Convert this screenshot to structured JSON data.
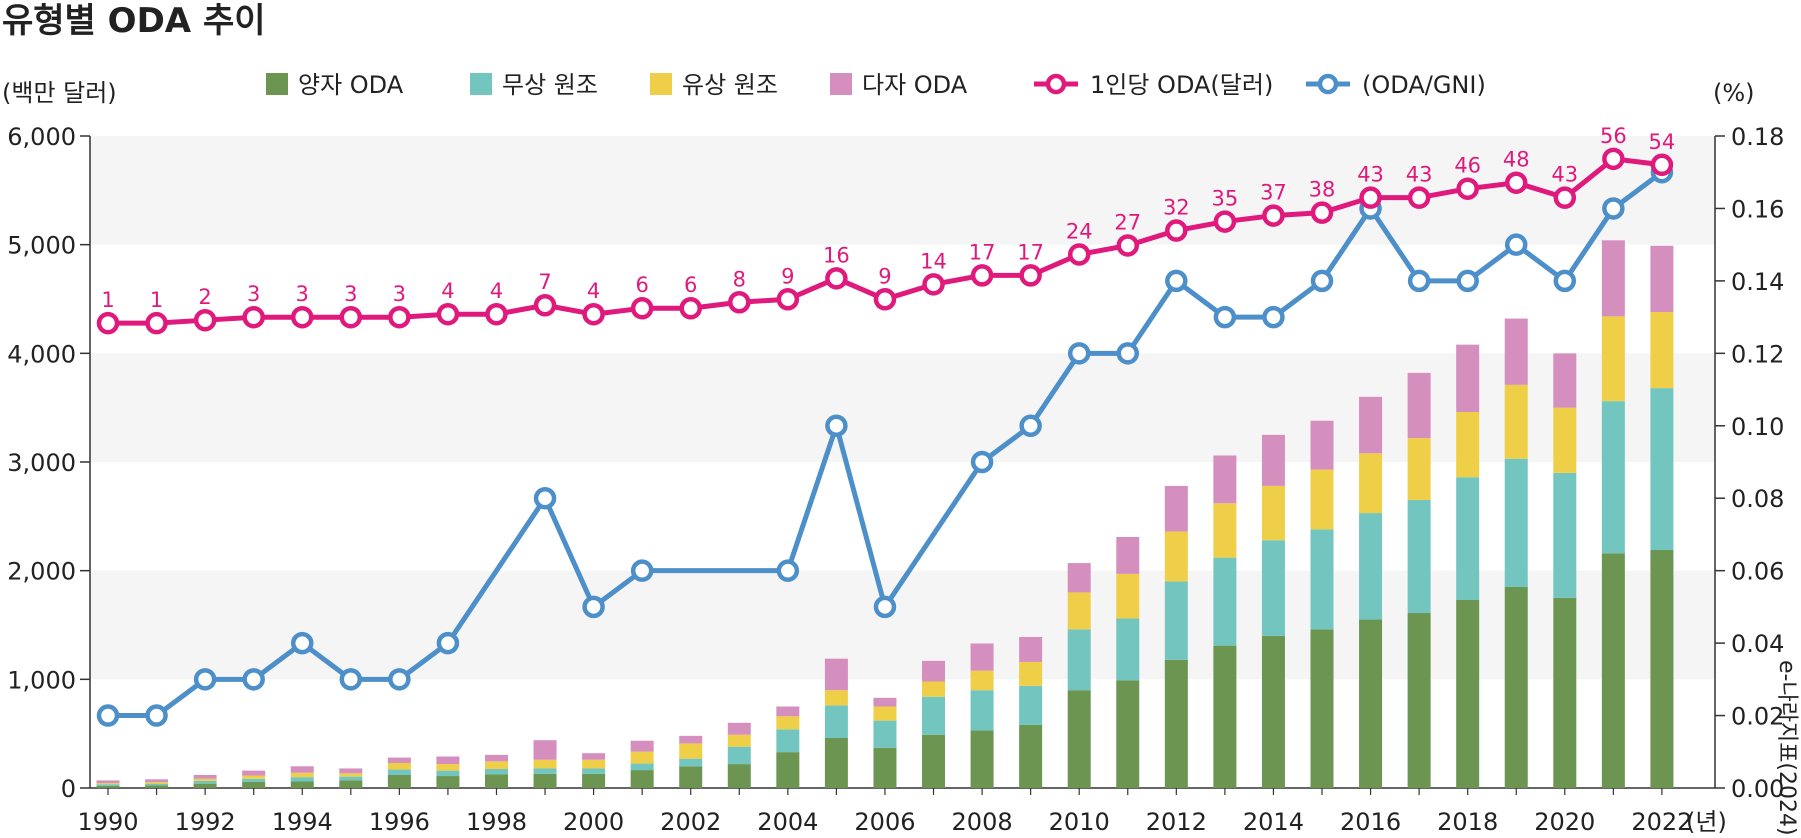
{
  "chart_data": {
    "type": "bar",
    "title": "유형별 ODA 추이",
    "left_axis_unit": "(백만 달러)",
    "right_axis_unit": "(%)",
    "x_unit": "(년)",
    "source": "e-나라지표(2024)",
    "ylim": [
      0,
      6000
    ],
    "y2lim": [
      0,
      0.18
    ],
    "yticks": [
      "0",
      "1,000",
      "2,000",
      "3,000",
      "4,000",
      "5,000",
      "6,000"
    ],
    "y2ticks": [
      "0.00",
      "0.02",
      "0.04",
      "0.06",
      "0.08",
      "0.10",
      "0.12",
      "0.14",
      "0.16",
      "0.18"
    ],
    "xtick_labels": [
      "1990",
      "1992",
      "1994",
      "1996",
      "1998",
      "2000",
      "2002",
      "2004",
      "2006",
      "2008",
      "2010",
      "2012",
      "2014",
      "2016",
      "2018",
      "2020",
      "2022"
    ],
    "grid": "alternating horizontal bands",
    "legend_position": "top",
    "categories": [
      1990,
      1991,
      1992,
      1993,
      1994,
      1995,
      1996,
      1997,
      1998,
      1999,
      2000,
      2001,
      2002,
      2003,
      2004,
      2005,
      2006,
      2007,
      2008,
      2009,
      2010,
      2011,
      2012,
      2013,
      2014,
      2015,
      2016,
      2017,
      2018,
      2019,
      2020,
      2021,
      2022
    ],
    "series": [
      {
        "name": "양자 ODA",
        "kind": "stacked-bar",
        "color": "#6b9551",
        "values": [
          20,
          25,
          40,
          55,
          60,
          70,
          120,
          110,
          125,
          130,
          130,
          165,
          200,
          220,
          330,
          460,
          370,
          490,
          530,
          580,
          900,
          990,
          1180,
          1310,
          1400,
          1460,
          1550,
          1610,
          1730,
          1850,
          1750,
          2160,
          2190
        ]
      },
      {
        "name": "무상 원조",
        "kind": "stacked-bar",
        "color": "#72c6bf",
        "values": [
          15,
          15,
          25,
          30,
          40,
          35,
          50,
          50,
          50,
          50,
          50,
          60,
          70,
          160,
          210,
          300,
          250,
          350,
          370,
          360,
          560,
          570,
          720,
          810,
          880,
          920,
          980,
          1040,
          1130,
          1180,
          1150,
          1400,
          1490
        ]
      },
      {
        "name": "유상 원조",
        "kind": "stacked-bar",
        "color": "#f0cf48",
        "values": [
          10,
          15,
          20,
          30,
          40,
          30,
          60,
          60,
          70,
          80,
          80,
          110,
          140,
          110,
          120,
          140,
          130,
          140,
          180,
          220,
          340,
          410,
          460,
          500,
          500,
          550,
          550,
          570,
          600,
          680,
          600,
          780,
          700
        ]
      },
      {
        "name": "다자 ODA",
        "kind": "stacked-bar",
        "color": "#d58fbf",
        "values": [
          25,
          25,
          35,
          45,
          60,
          45,
          50,
          70,
          60,
          180,
          60,
          100,
          70,
          110,
          90,
          290,
          80,
          190,
          250,
          230,
          270,
          340,
          420,
          440,
          470,
          450,
          520,
          600,
          620,
          610,
          500,
          700,
          610
        ]
      },
      {
        "name": "1인당 ODA(달러)",
        "kind": "line",
        "axis": "left-scaled",
        "color": "#e0197d",
        "values": [
          1,
          1,
          2,
          3,
          3,
          3,
          3,
          4,
          4,
          7,
          4,
          6,
          6,
          8,
          9,
          16,
          9,
          14,
          17,
          17,
          24,
          27,
          32,
          35,
          37,
          38,
          43,
          43,
          46,
          48,
          43,
          56,
          54
        ],
        "labels": [
          "1",
          "1",
          "2",
          "3",
          "3",
          "3",
          "3",
          "4",
          "4",
          "7",
          "4",
          "6",
          "6",
          "8",
          "9",
          "16",
          "9",
          "14",
          "17",
          "17",
          "24",
          "27",
          "32",
          "35",
          "37",
          "38",
          "43",
          "43",
          "46",
          "48",
          "43",
          "56",
          "54"
        ]
      },
      {
        "name": "(ODA/GNI)",
        "kind": "line",
        "axis": "right",
        "color": "#4d8fc9",
        "values": [
          0.02,
          0.02,
          0.03,
          0.03,
          0.04,
          0.03,
          0.03,
          0.04,
          null,
          0.08,
          0.05,
          0.06,
          null,
          null,
          0.06,
          0.1,
          0.05,
          null,
          0.09,
          0.1,
          0.12,
          0.12,
          0.14,
          0.13,
          0.13,
          0.14,
          0.16,
          0.14,
          0.14,
          0.15,
          0.14,
          0.16,
          0.17
        ]
      }
    ]
  }
}
